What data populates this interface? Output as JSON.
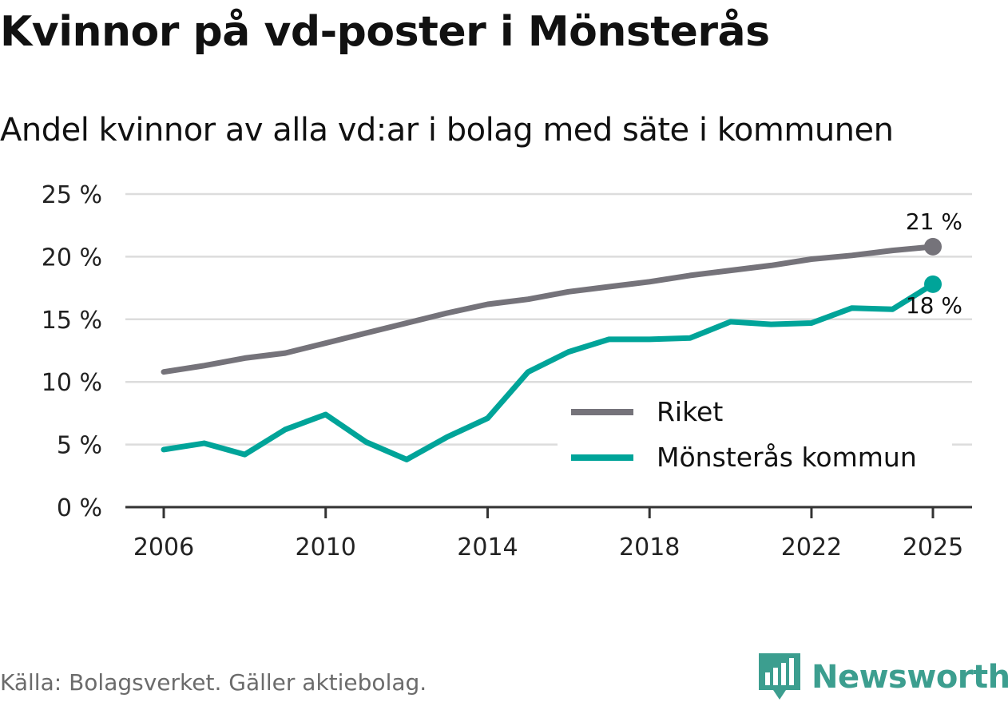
{
  "title": "Kvinnor på vd-poster i Mönsterås",
  "subtitle": "Andel kvinnor av alla vd:ar i bolag med säte i kommunen",
  "source": "Källa: Bolagsverket. Gäller aktiebolag.",
  "brand": {
    "name": "Newsworthy",
    "color": "#3c9e8f"
  },
  "chart_data": {
    "type": "line",
    "title": "Kvinnor på vd-poster i Mönsterås",
    "subtitle": "Andel kvinnor av alla vd:ar i bolag med säte i kommunen",
    "xlabel": "",
    "ylabel": "",
    "ylim": [
      0,
      25
    ],
    "yticks": [
      0,
      5,
      10,
      15,
      20,
      25
    ],
    "ytick_labels": [
      "0 %",
      "5 %",
      "10 %",
      "15 %",
      "20 %",
      "25 %"
    ],
    "xlim": [
      2005,
      2025.9
    ],
    "xticks": [
      2006,
      2010,
      2014,
      2018,
      2022,
      2025
    ],
    "xtick_labels": [
      "2006",
      "2010",
      "2014",
      "2018",
      "2022",
      "2025"
    ],
    "grid": true,
    "legend_position": "lower-right",
    "x": [
      2006,
      2007,
      2008,
      2009,
      2010,
      2011,
      2012,
      2013,
      2014,
      2015,
      2016,
      2017,
      2018,
      2019,
      2020,
      2021,
      2022,
      2023,
      2024,
      2025
    ],
    "series": [
      {
        "name": "Riket",
        "color": "#75737a",
        "values": [
          10.8,
          11.3,
          11.9,
          12.3,
          13.1,
          13.9,
          14.7,
          15.5,
          16.2,
          16.6,
          17.2,
          17.6,
          18.0,
          18.5,
          18.9,
          19.3,
          19.8,
          20.1,
          20.5,
          20.8
        ],
        "end_label": "21 %"
      },
      {
        "name": "Mönsterås kommun",
        "color": "#00a499",
        "values": [
          4.6,
          5.1,
          4.2,
          6.2,
          7.4,
          5.2,
          3.8,
          5.6,
          7.1,
          10.8,
          12.4,
          13.4,
          13.4,
          13.5,
          14.8,
          14.6,
          14.7,
          15.9,
          15.8,
          17.8
        ],
        "end_label": "18 %"
      }
    ]
  }
}
